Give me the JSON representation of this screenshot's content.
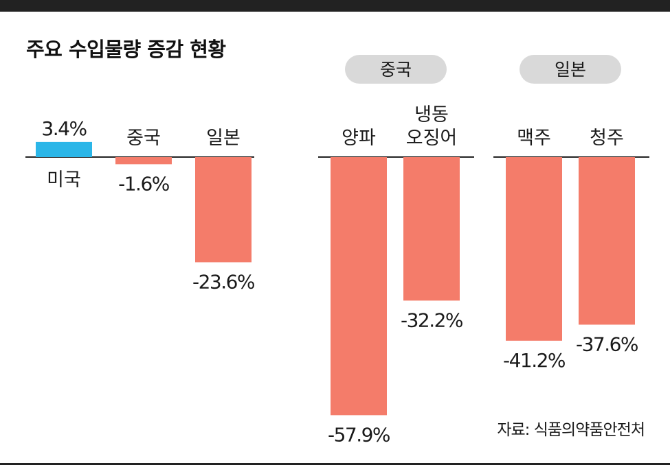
{
  "title": "주요 수입물량 증감 현황",
  "source": "자료: 식품의약품안전처",
  "colors": {
    "positive": "#2bb6e8",
    "negative": "#f47c6a",
    "pill": "#d9d9d9",
    "frame": "#222222"
  },
  "chart_data": [
    {
      "type": "bar",
      "title": "",
      "unit": "%",
      "categories": [
        "미국",
        "중국",
        "일본"
      ],
      "values": [
        3.4,
        -1.6,
        -23.6
      ],
      "labels": [
        "3.4%",
        "-1.6%",
        "-23.6%"
      ]
    },
    {
      "type": "bar",
      "title": "중국",
      "unit": "%",
      "categories": [
        "양파",
        "냉동 오징어"
      ],
      "values": [
        -57.9,
        -32.2
      ],
      "labels": [
        "-57.9%",
        "-32.2%"
      ]
    },
    {
      "type": "bar",
      "title": "일본",
      "unit": "%",
      "categories": [
        "맥주",
        "청주"
      ],
      "values": [
        -41.2,
        -37.6
      ],
      "labels": [
        "-41.2%",
        "-37.6%"
      ]
    }
  ]
}
